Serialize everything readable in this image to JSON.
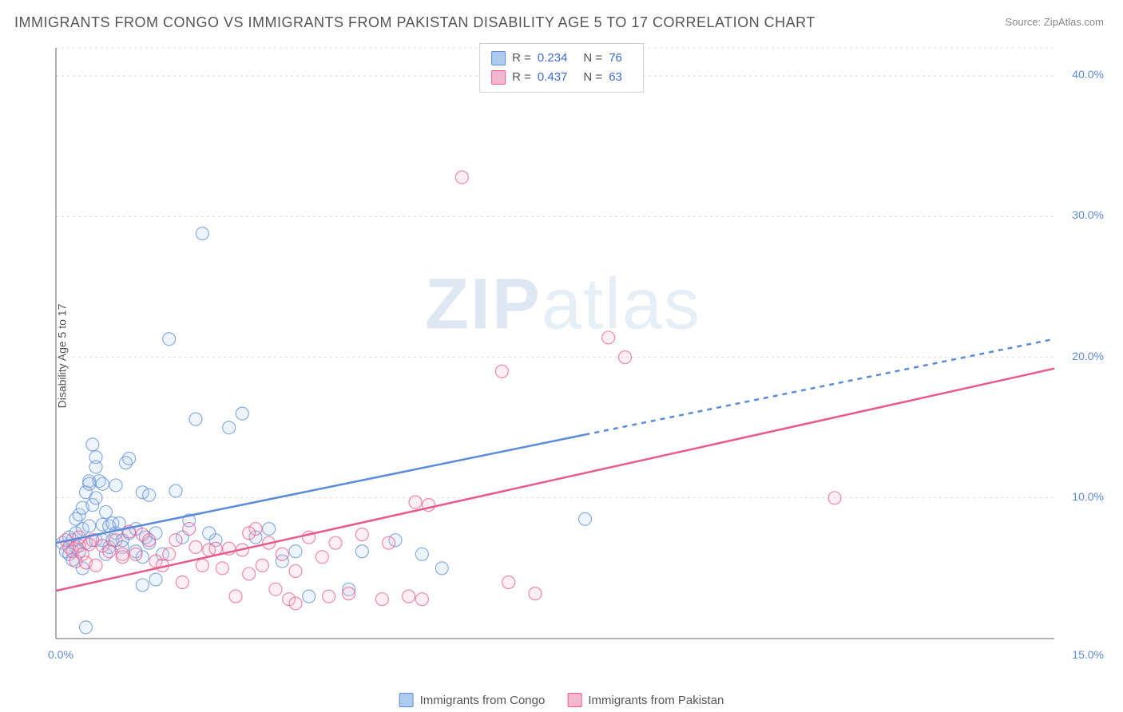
{
  "title": "IMMIGRANTS FROM CONGO VS IMMIGRANTS FROM PAKISTAN DISABILITY AGE 5 TO 17 CORRELATION CHART",
  "source_label": "Source: ",
  "source_name": "ZipAtlas.com",
  "y_axis_label": "Disability Age 5 to 17",
  "watermark": "ZIPatlas",
  "chart": {
    "type": "scatter",
    "xlim": [
      0,
      15
    ],
    "ylim": [
      0,
      42
    ],
    "x_ticks": [
      {
        "v": 0,
        "l": "0.0%"
      },
      {
        "v": 15,
        "l": "15.0%"
      }
    ],
    "y_ticks": [
      {
        "v": 10,
        "l": "10.0%"
      },
      {
        "v": 20,
        "l": "20.0%"
      },
      {
        "v": 30,
        "l": "30.0%"
      },
      {
        "v": 40,
        "l": "40.0%"
      }
    ],
    "grid_color": "#dcdcdc",
    "axis_color": "#666",
    "background_color": "#ffffff",
    "marker_radius": 8,
    "marker_stroke_width": 1.2,
    "marker_fill_opacity": 0.22,
    "line_width": 2.5,
    "series": [
      {
        "name": "Immigrants from Congo",
        "color": "#5b8bd9",
        "fill": "#aecbee",
        "R": "0.234",
        "N": "76",
        "points": [
          [
            0.1,
            6.8
          ],
          [
            0.15,
            6.2
          ],
          [
            0.2,
            7.2
          ],
          [
            0.2,
            6.0
          ],
          [
            0.25,
            5.6
          ],
          [
            0.25,
            7.0
          ],
          [
            0.3,
            7.5
          ],
          [
            0.3,
            6.5
          ],
          [
            0.3,
            8.5
          ],
          [
            0.35,
            8.8
          ],
          [
            0.35,
            6.2
          ],
          [
            0.4,
            9.3
          ],
          [
            0.4,
            7.8
          ],
          [
            0.4,
            5.0
          ],
          [
            0.45,
            10.4
          ],
          [
            0.45,
            6.8
          ],
          [
            0.5,
            11.2
          ],
          [
            0.5,
            11.0
          ],
          [
            0.5,
            8.0
          ],
          [
            0.55,
            13.8
          ],
          [
            0.55,
            9.5
          ],
          [
            0.6,
            12.9
          ],
          [
            0.6,
            12.2
          ],
          [
            0.6,
            10.0
          ],
          [
            0.6,
            7.0
          ],
          [
            0.65,
            11.2
          ],
          [
            0.7,
            8.1
          ],
          [
            0.7,
            7.0
          ],
          [
            0.7,
            11.0
          ],
          [
            0.75,
            9.0
          ],
          [
            0.75,
            6.0
          ],
          [
            0.8,
            8.0
          ],
          [
            0.8,
            6.5
          ],
          [
            0.85,
            8.2
          ],
          [
            0.85,
            7.0
          ],
          [
            0.9,
            10.9
          ],
          [
            0.9,
            7.5
          ],
          [
            0.95,
            8.2
          ],
          [
            1.0,
            7.0
          ],
          [
            1.0,
            6.5
          ],
          [
            1.05,
            12.5
          ],
          [
            1.1,
            7.5
          ],
          [
            1.1,
            12.8
          ],
          [
            1.2,
            7.8
          ],
          [
            1.2,
            6.2
          ],
          [
            1.3,
            10.4
          ],
          [
            1.3,
            5.8
          ],
          [
            1.35,
            7.2
          ],
          [
            1.4,
            10.2
          ],
          [
            1.4,
            6.8
          ],
          [
            1.5,
            7.5
          ],
          [
            1.5,
            4.2
          ],
          [
            1.6,
            6.0
          ],
          [
            1.7,
            21.3
          ],
          [
            1.8,
            10.5
          ],
          [
            1.9,
            7.2
          ],
          [
            2.0,
            8.4
          ],
          [
            2.1,
            15.6
          ],
          [
            2.2,
            28.8
          ],
          [
            2.4,
            7.0
          ],
          [
            2.6,
            15.0
          ],
          [
            2.8,
            16.0
          ],
          [
            3.0,
            7.2
          ],
          [
            3.2,
            7.8
          ],
          [
            3.4,
            5.5
          ],
          [
            3.6,
            6.2
          ],
          [
            3.8,
            3.0
          ],
          [
            4.4,
            3.5
          ],
          [
            4.6,
            6.2
          ],
          [
            5.1,
            7.0
          ],
          [
            5.5,
            6.0
          ],
          [
            5.8,
            5.0
          ],
          [
            0.45,
            0.8
          ],
          [
            1.3,
            3.8
          ],
          [
            2.3,
            7.5
          ],
          [
            7.95,
            8.5
          ]
        ],
        "trend": {
          "x1": 0,
          "y1": 6.8,
          "x2": 7.95,
          "y2": 14.5,
          "x2_dash": 15,
          "y2_dash": 21.3
        }
      },
      {
        "name": "Immigrants from Pakistan",
        "color": "#e85a8a",
        "fill": "#f4b8ce",
        "R": "0.437",
        "N": "63",
        "points": [
          [
            0.15,
            7.0
          ],
          [
            0.2,
            6.5
          ],
          [
            0.25,
            6.2
          ],
          [
            0.3,
            5.5
          ],
          [
            0.35,
            6.6
          ],
          [
            0.35,
            7.2
          ],
          [
            0.4,
            6.0
          ],
          [
            0.45,
            5.4
          ],
          [
            0.5,
            6.7
          ],
          [
            0.55,
            7.0
          ],
          [
            0.6,
            5.2
          ],
          [
            0.7,
            6.6
          ],
          [
            0.8,
            6.2
          ],
          [
            0.9,
            7.0
          ],
          [
            1.0,
            6.0
          ],
          [
            1.0,
            5.8
          ],
          [
            1.1,
            7.6
          ],
          [
            1.2,
            6.0
          ],
          [
            1.3,
            7.4
          ],
          [
            1.4,
            7.0
          ],
          [
            1.5,
            5.5
          ],
          [
            1.6,
            5.2
          ],
          [
            1.7,
            6.0
          ],
          [
            1.8,
            7.0
          ],
          [
            1.9,
            4.0
          ],
          [
            2.0,
            7.8
          ],
          [
            2.1,
            6.5
          ],
          [
            2.2,
            5.2
          ],
          [
            2.3,
            6.3
          ],
          [
            2.4,
            6.4
          ],
          [
            2.5,
            5.0
          ],
          [
            2.6,
            6.4
          ],
          [
            2.7,
            3.0
          ],
          [
            2.8,
            6.3
          ],
          [
            2.9,
            4.6
          ],
          [
            3.0,
            7.8
          ],
          [
            3.1,
            5.2
          ],
          [
            3.2,
            6.8
          ],
          [
            3.3,
            3.5
          ],
          [
            3.4,
            6.0
          ],
          [
            3.5,
            2.8
          ],
          [
            3.6,
            2.5
          ],
          [
            3.8,
            7.2
          ],
          [
            4.0,
            5.8
          ],
          [
            4.1,
            3.0
          ],
          [
            4.2,
            6.8
          ],
          [
            4.4,
            3.2
          ],
          [
            4.6,
            7.4
          ],
          [
            4.9,
            2.8
          ],
          [
            5.0,
            6.8
          ],
          [
            5.3,
            3.0
          ],
          [
            5.4,
            9.7
          ],
          [
            5.5,
            2.8
          ],
          [
            5.6,
            9.5
          ],
          [
            6.1,
            32.8
          ],
          [
            6.7,
            19.0
          ],
          [
            6.8,
            4.0
          ],
          [
            7.2,
            3.2
          ],
          [
            8.3,
            21.4
          ],
          [
            8.55,
            20.0
          ],
          [
            11.7,
            10.0
          ],
          [
            2.9,
            7.5
          ],
          [
            3.6,
            4.8
          ]
        ],
        "trend": {
          "x1": 0,
          "y1": 3.4,
          "x2": 15,
          "y2": 19.2
        }
      }
    ]
  },
  "legend_bottom": [
    {
      "label": "Immigrants from Congo",
      "fill": "#aecbee",
      "stroke": "#5b8bd9"
    },
    {
      "label": "Immigrants from Pakistan",
      "fill": "#f4b8ce",
      "stroke": "#e85a8a"
    }
  ]
}
